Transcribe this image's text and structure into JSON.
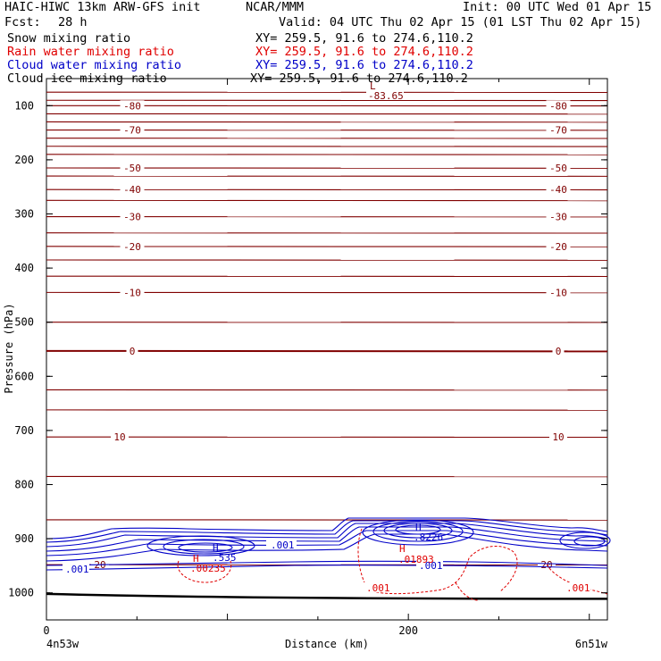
{
  "header": {
    "model": "HAIC-HIWC 13km ARW-GFS init",
    "org": "NCAR/MMM",
    "init": "Init: 00 UTC Wed 01 Apr 15",
    "fcst_label": "Fcst:",
    "fcst_value": "28 h",
    "valid": "Valid: 04 UTC Thu 02 Apr 15 (01 LST Thu 02 Apr 15)"
  },
  "fields": [
    {
      "name": "Snow mixing ratio",
      "xy": "XY= 259.5, 91.6 to 274.6,110.2",
      "color": "#000000"
    },
    {
      "name": "Rain water mixing ratio",
      "xy": "XY= 259.5, 91.6 to 274.6,110.2",
      "color": "#e00000"
    },
    {
      "name": "Cloud water mixing ratio",
      "xy": "XY= 259.5, 91.6 to 274.6,110.2",
      "color": "#0000c8"
    },
    {
      "name": "Cloud ice mixing ratio",
      "xy": "XY= 259.5, 91.6 to 274.6,110.2",
      "color": "#000000"
    }
  ],
  "chart_data": {
    "type": "line",
    "title": "HAIC-HIWC 13km ARW-GFS init",
    "xlabel": "Distance (km)",
    "ylabel": "Pressure (hPa)",
    "xlim": [
      0,
      310
    ],
    "ylim": [
      1050,
      50
    ],
    "x_ticks": [
      0,
      200
    ],
    "y_ticks": [
      100,
      200,
      300,
      400,
      500,
      600,
      700,
      800,
      900,
      1000
    ],
    "x_end_labels": {
      "left": "4n53w",
      "right": "6n51w"
    },
    "temperature_contours": {
      "color": "#800000",
      "levels_labeled": [
        {
          "value": "-80",
          "p": 100
        },
        {
          "value": "-70",
          "p": 145
        },
        {
          "value": "-50",
          "p": 215
        },
        {
          "value": "-40",
          "p": 255
        },
        {
          "value": "-30",
          "p": 305
        },
        {
          "value": "-20",
          "p": 360
        },
        {
          "value": "-10",
          "p": 445
        },
        {
          "value": "0",
          "p": 553
        },
        {
          "value": "10",
          "p": 712
        },
        {
          "value": "20",
          "p": 948
        }
      ],
      "unlabeled_p": [
        75,
        90,
        115,
        130,
        160,
        175,
        190,
        230,
        275,
        335,
        385,
        415,
        500,
        625,
        662,
        785,
        865
      ],
      "minimum_label": "-83.65"
    },
    "cloud_water": {
      "color": "#0000c8",
      "contour_label": ".001",
      "max_label": ".8226",
      "secondary_max_label": ".535",
      "max_marker": "H"
    },
    "rain_water": {
      "color": "#e00000",
      "contour_label": ".001",
      "max_labels": [
        ".00235",
        ".01893"
      ],
      "max_marker": "H"
    },
    "surface": {
      "color": "#000000",
      "p_left": 1002,
      "p_right": 1011
    }
  }
}
